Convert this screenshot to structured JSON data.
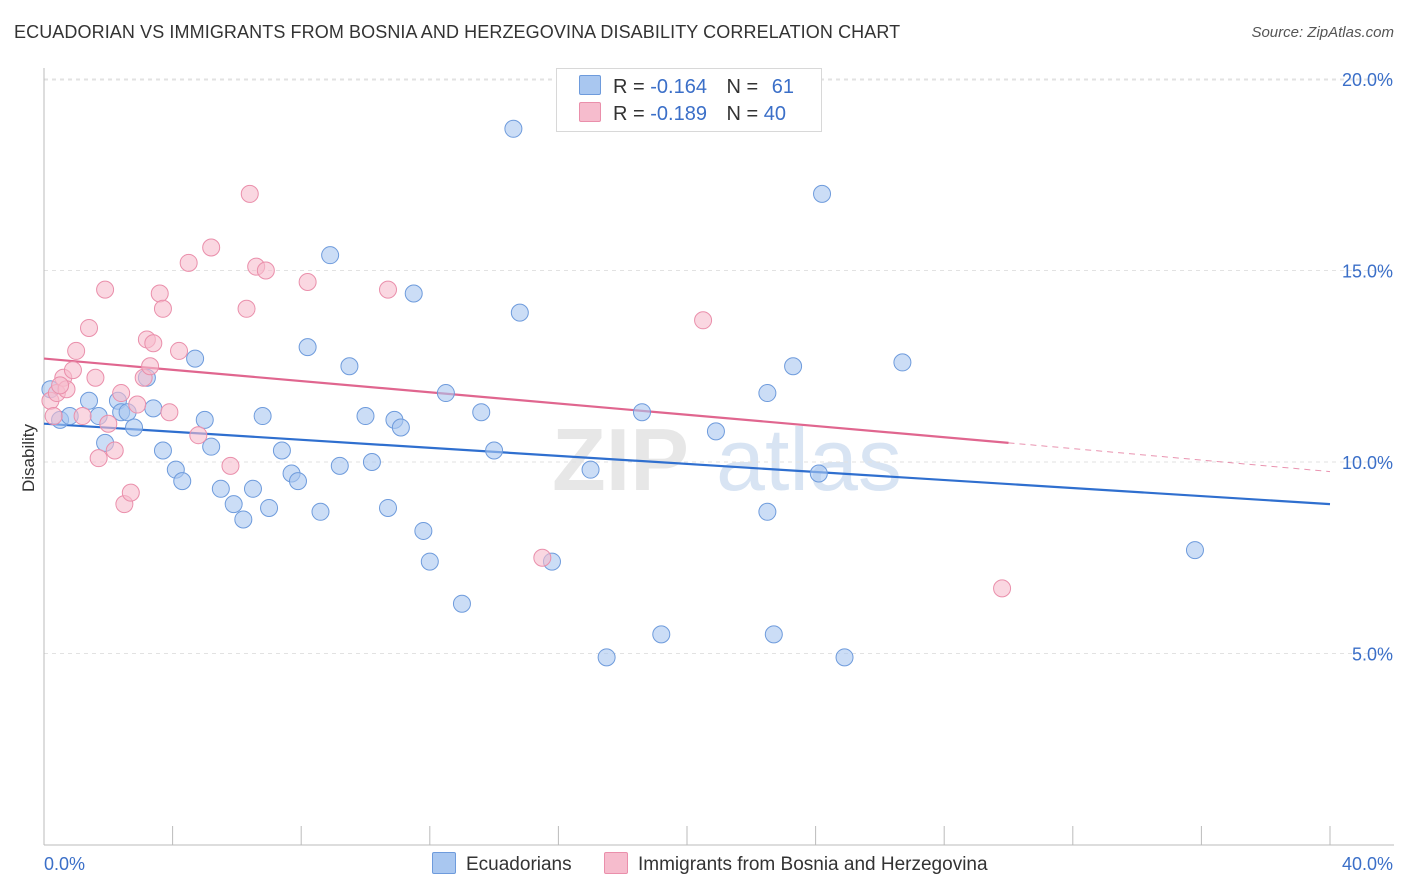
{
  "header": {
    "title": "ECUADORIAN VS IMMIGRANTS FROM BOSNIA AND HERZEGOVINA DISABILITY CORRELATION CHART",
    "source": "Source: ZipAtlas.com"
  },
  "watermark": {
    "zip": "ZIP",
    "atlas": "atlas"
  },
  "legend": {
    "r_label": "R =",
    "n_label": "N =",
    "rows": [
      {
        "r": "-0.164",
        "n": "61",
        "color": "#a9c7f0"
      },
      {
        "r": "-0.189",
        "n": "40",
        "color": "#f6bccd"
      }
    ]
  },
  "bottom_legend": {
    "series1": "Ecuadorians",
    "series2": "Immigrants from Bosnia and Herzegovina"
  },
  "chart_data": {
    "type": "scatter",
    "title": "ECUADORIAN VS IMMIGRANTS FROM BOSNIA AND HERZEGOVINA DISABILITY CORRELATION CHART",
    "xlabel": "",
    "ylabel": "Disability",
    "xlim": [
      0,
      40
    ],
    "ylim": [
      0,
      20.5
    ],
    "x_tick_labels": [
      "0.0%",
      "40.0%"
    ],
    "y_tick_values": [
      5,
      10,
      15,
      20
    ],
    "y_tick_labels": [
      "5.0%",
      "10.0%",
      "15.0%",
      "20.0%"
    ],
    "grid": "horizontal dashed",
    "legend_placement": "top-center",
    "series": [
      {
        "name": "Ecuadorians",
        "color": "#a9c7f0",
        "stroke": "#6e9bdc",
        "line_color": "#2f6fcf",
        "trend": {
          "x": [
            0,
            40
          ],
          "y": [
            11.0,
            8.9
          ]
        },
        "points": [
          [
            0.2,
            11.9
          ],
          [
            0.5,
            11.1
          ],
          [
            0.8,
            11.2
          ],
          [
            1.4,
            11.6
          ],
          [
            1.7,
            11.2
          ],
          [
            1.9,
            10.5
          ],
          [
            2.3,
            11.6
          ],
          [
            2.4,
            11.3
          ],
          [
            2.6,
            11.3
          ],
          [
            2.8,
            10.9
          ],
          [
            3.2,
            12.2
          ],
          [
            3.4,
            11.4
          ],
          [
            3.7,
            10.3
          ],
          [
            4.1,
            9.8
          ],
          [
            4.3,
            9.5
          ],
          [
            4.7,
            12.7
          ],
          [
            5.0,
            11.1
          ],
          [
            5.2,
            10.4
          ],
          [
            5.5,
            9.3
          ],
          [
            5.9,
            8.9
          ],
          [
            6.2,
            8.5
          ],
          [
            6.5,
            9.3
          ],
          [
            6.8,
            11.2
          ],
          [
            7.0,
            8.8
          ],
          [
            7.4,
            10.3
          ],
          [
            7.7,
            9.7
          ],
          [
            7.9,
            9.5
          ],
          [
            8.2,
            13.0
          ],
          [
            8.6,
            8.7
          ],
          [
            8.9,
            15.4
          ],
          [
            9.2,
            9.9
          ],
          [
            9.5,
            12.5
          ],
          [
            10.0,
            11.2
          ],
          [
            10.2,
            10.0
          ],
          [
            10.7,
            8.8
          ],
          [
            10.9,
            11.1
          ],
          [
            11.1,
            10.9
          ],
          [
            11.5,
            14.4
          ],
          [
            11.8,
            8.2
          ],
          [
            12.0,
            7.4
          ],
          [
            12.5,
            11.8
          ],
          [
            13.0,
            6.3
          ],
          [
            13.6,
            11.3
          ],
          [
            14.0,
            10.3
          ],
          [
            14.6,
            18.7
          ],
          [
            14.8,
            13.9
          ],
          [
            15.8,
            7.4
          ],
          [
            17.0,
            9.8
          ],
          [
            17.5,
            4.9
          ],
          [
            18.6,
            11.3
          ],
          [
            19.2,
            5.5
          ],
          [
            20.9,
            10.8
          ],
          [
            22.5,
            11.8
          ],
          [
            22.5,
            8.7
          ],
          [
            22.7,
            5.5
          ],
          [
            23.3,
            12.5
          ],
          [
            24.1,
            9.7
          ],
          [
            24.2,
            17.0
          ],
          [
            24.9,
            4.9
          ],
          [
            26.7,
            12.6
          ],
          [
            35.8,
            7.7
          ]
        ]
      },
      {
        "name": "Immigrants from Bosnia and Herzegovina",
        "color": "#f6bccd",
        "stroke": "#ea8fab",
        "line_color": "#e0668f",
        "trend": {
          "x": [
            0,
            30
          ],
          "y": [
            12.7,
            10.5
          ]
        },
        "trend_dashed_to": {
          "x": 40,
          "y": 9.75
        },
        "points": [
          [
            0.2,
            11.6
          ],
          [
            0.4,
            11.8
          ],
          [
            0.6,
            12.2
          ],
          [
            0.7,
            11.9
          ],
          [
            0.9,
            12.4
          ],
          [
            1.0,
            12.9
          ],
          [
            1.2,
            11.2
          ],
          [
            1.4,
            13.5
          ],
          [
            1.6,
            12.2
          ],
          [
            1.7,
            10.1
          ],
          [
            1.9,
            14.5
          ],
          [
            2.0,
            11.0
          ],
          [
            2.2,
            10.3
          ],
          [
            2.4,
            11.8
          ],
          [
            2.5,
            8.9
          ],
          [
            2.7,
            9.2
          ],
          [
            2.9,
            11.5
          ],
          [
            3.1,
            12.2
          ],
          [
            3.2,
            13.2
          ],
          [
            3.3,
            12.5
          ],
          [
            3.4,
            13.1
          ],
          [
            3.6,
            14.4
          ],
          [
            3.7,
            14.0
          ],
          [
            3.9,
            11.3
          ],
          [
            4.2,
            12.9
          ],
          [
            4.5,
            15.2
          ],
          [
            4.8,
            10.7
          ],
          [
            5.2,
            15.6
          ],
          [
            5.8,
            9.9
          ],
          [
            6.3,
            14.0
          ],
          [
            6.4,
            17.0
          ],
          [
            6.6,
            15.1
          ],
          [
            6.9,
            15.0
          ],
          [
            8.2,
            14.7
          ],
          [
            10.7,
            14.5
          ],
          [
            15.5,
            7.5
          ],
          [
            20.5,
            13.7
          ],
          [
            29.8,
            6.7
          ],
          [
            0.3,
            11.2
          ],
          [
            0.5,
            12.0
          ]
        ]
      }
    ]
  }
}
